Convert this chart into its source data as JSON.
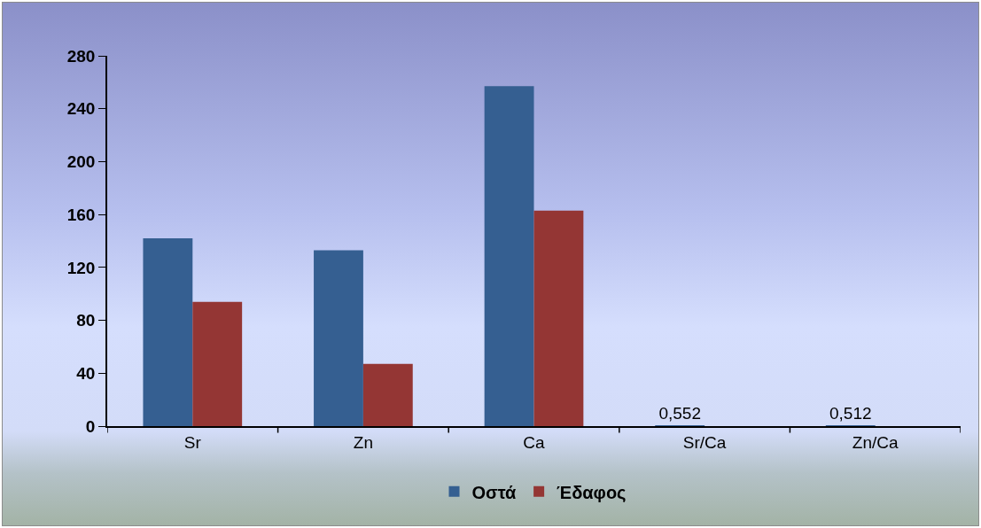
{
  "chart_data": {
    "type": "bar",
    "categories": [
      "Sr",
      "Zn",
      "Ca",
      "Sr/Ca",
      "Zn/Ca"
    ],
    "series": [
      {
        "name": "Οστά",
        "color": "#355f91",
        "values": [
          142,
          133,
          257,
          0.552,
          0.512
        ],
        "value_labels": [
          null,
          null,
          null,
          "0,552",
          "0,512"
        ]
      },
      {
        "name": "Έδαφος",
        "color": "#943634",
        "values": [
          94,
          47,
          163,
          null,
          null
        ]
      }
    ],
    "ylim": [
      0,
      280
    ],
    "yticks": [
      0,
      40,
      80,
      120,
      160,
      200,
      240,
      280
    ],
    "grid": false,
    "legend": "bottom"
  }
}
